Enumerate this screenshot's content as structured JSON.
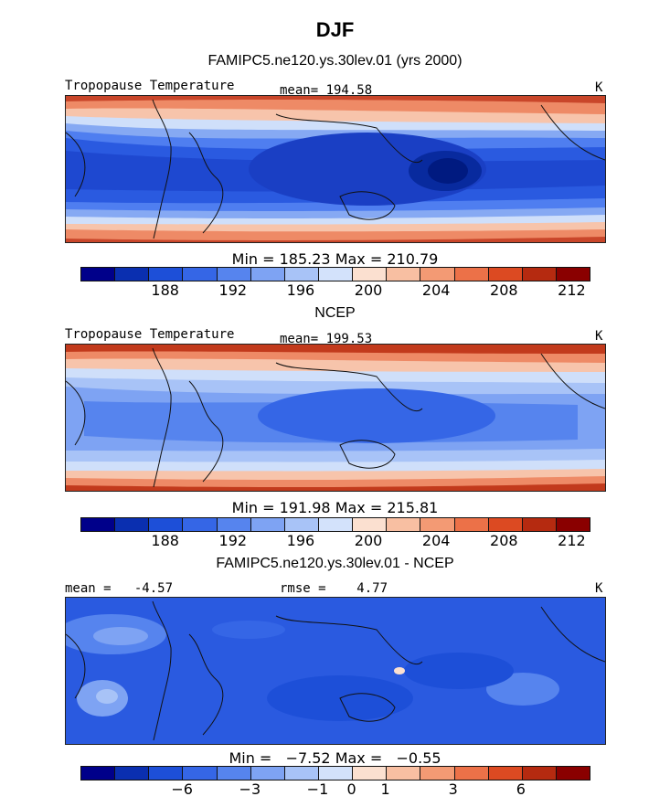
{
  "header": {
    "title": "DJF",
    "subtitle": "FAMIPC5.ne120.ys.30lev.01 (yrs 2000)"
  },
  "panels": [
    {
      "label_left": "Tropopause Temperature",
      "label_mid": "mean= 194.58",
      "label_right": "K",
      "stats": "Min = 185.23 Max = 210.79"
    },
    {
      "heading": "NCEP",
      "label_left": "Tropopause Temperature",
      "label_mid": "mean= 199.53",
      "label_right": "K",
      "stats": "Min = 191.98 Max = 215.81"
    },
    {
      "heading": "FAMIPC5.ne120.ys.30lev.01 - NCEP",
      "label_left": "mean =   -4.57",
      "label_mid": "rmse =    4.77",
      "label_right": "K",
      "stats": "Min =   −7.52 Max =   −0.55"
    }
  ],
  "colorbars": {
    "colors": [
      "#00008a",
      "#0a2fb0",
      "#1d4fd8",
      "#3566e6",
      "#5684ee",
      "#7ea3f3",
      "#a8c3f7",
      "#d3e2fb",
      "#fbe0d0",
      "#f8bfa2",
      "#f39a74",
      "#ec7148",
      "#dc4a22",
      "#b52a10",
      "#8a0000"
    ],
    "abs_ticks": [
      "188",
      "192",
      "196",
      "200",
      "204",
      "208",
      "212"
    ],
    "abs_tick_positions": [
      2.5,
      4.5,
      6.5,
      8.5,
      10.5,
      12.5,
      14.5
    ],
    "diff_ticks": [
      "−6",
      "−3",
      "−1",
      "0",
      "1",
      "3",
      "6"
    ],
    "diff_tick_positions": [
      3,
      5,
      7,
      8,
      9,
      11,
      13
    ]
  }
}
